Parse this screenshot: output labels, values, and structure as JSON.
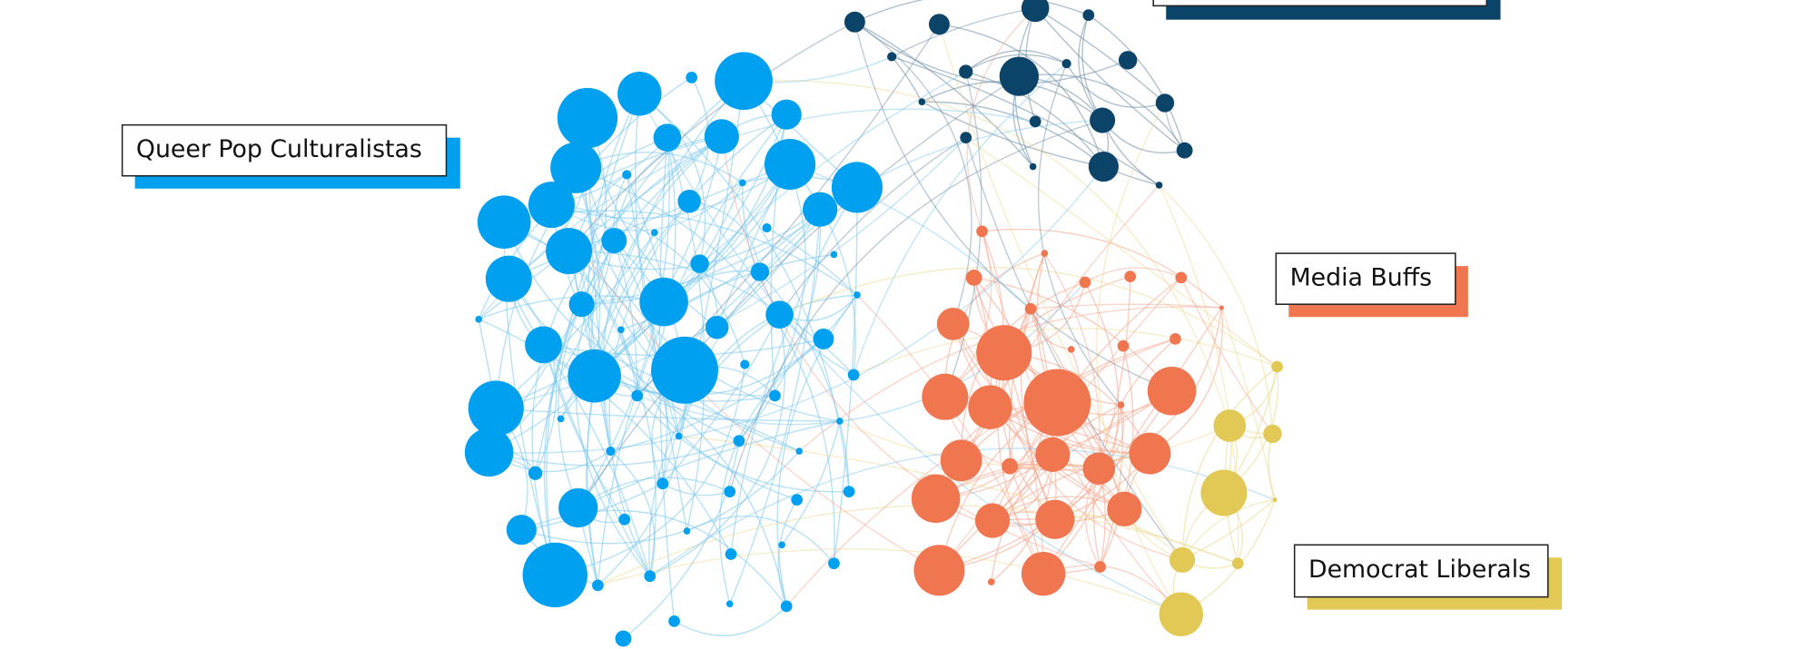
{
  "clusters": [
    {
      "label": "Queer Pop Culturalistas"
    },
    {
      "label": "Media Buffs"
    },
    {
      "label": "Democrat Liberals"
    }
  ]
}
